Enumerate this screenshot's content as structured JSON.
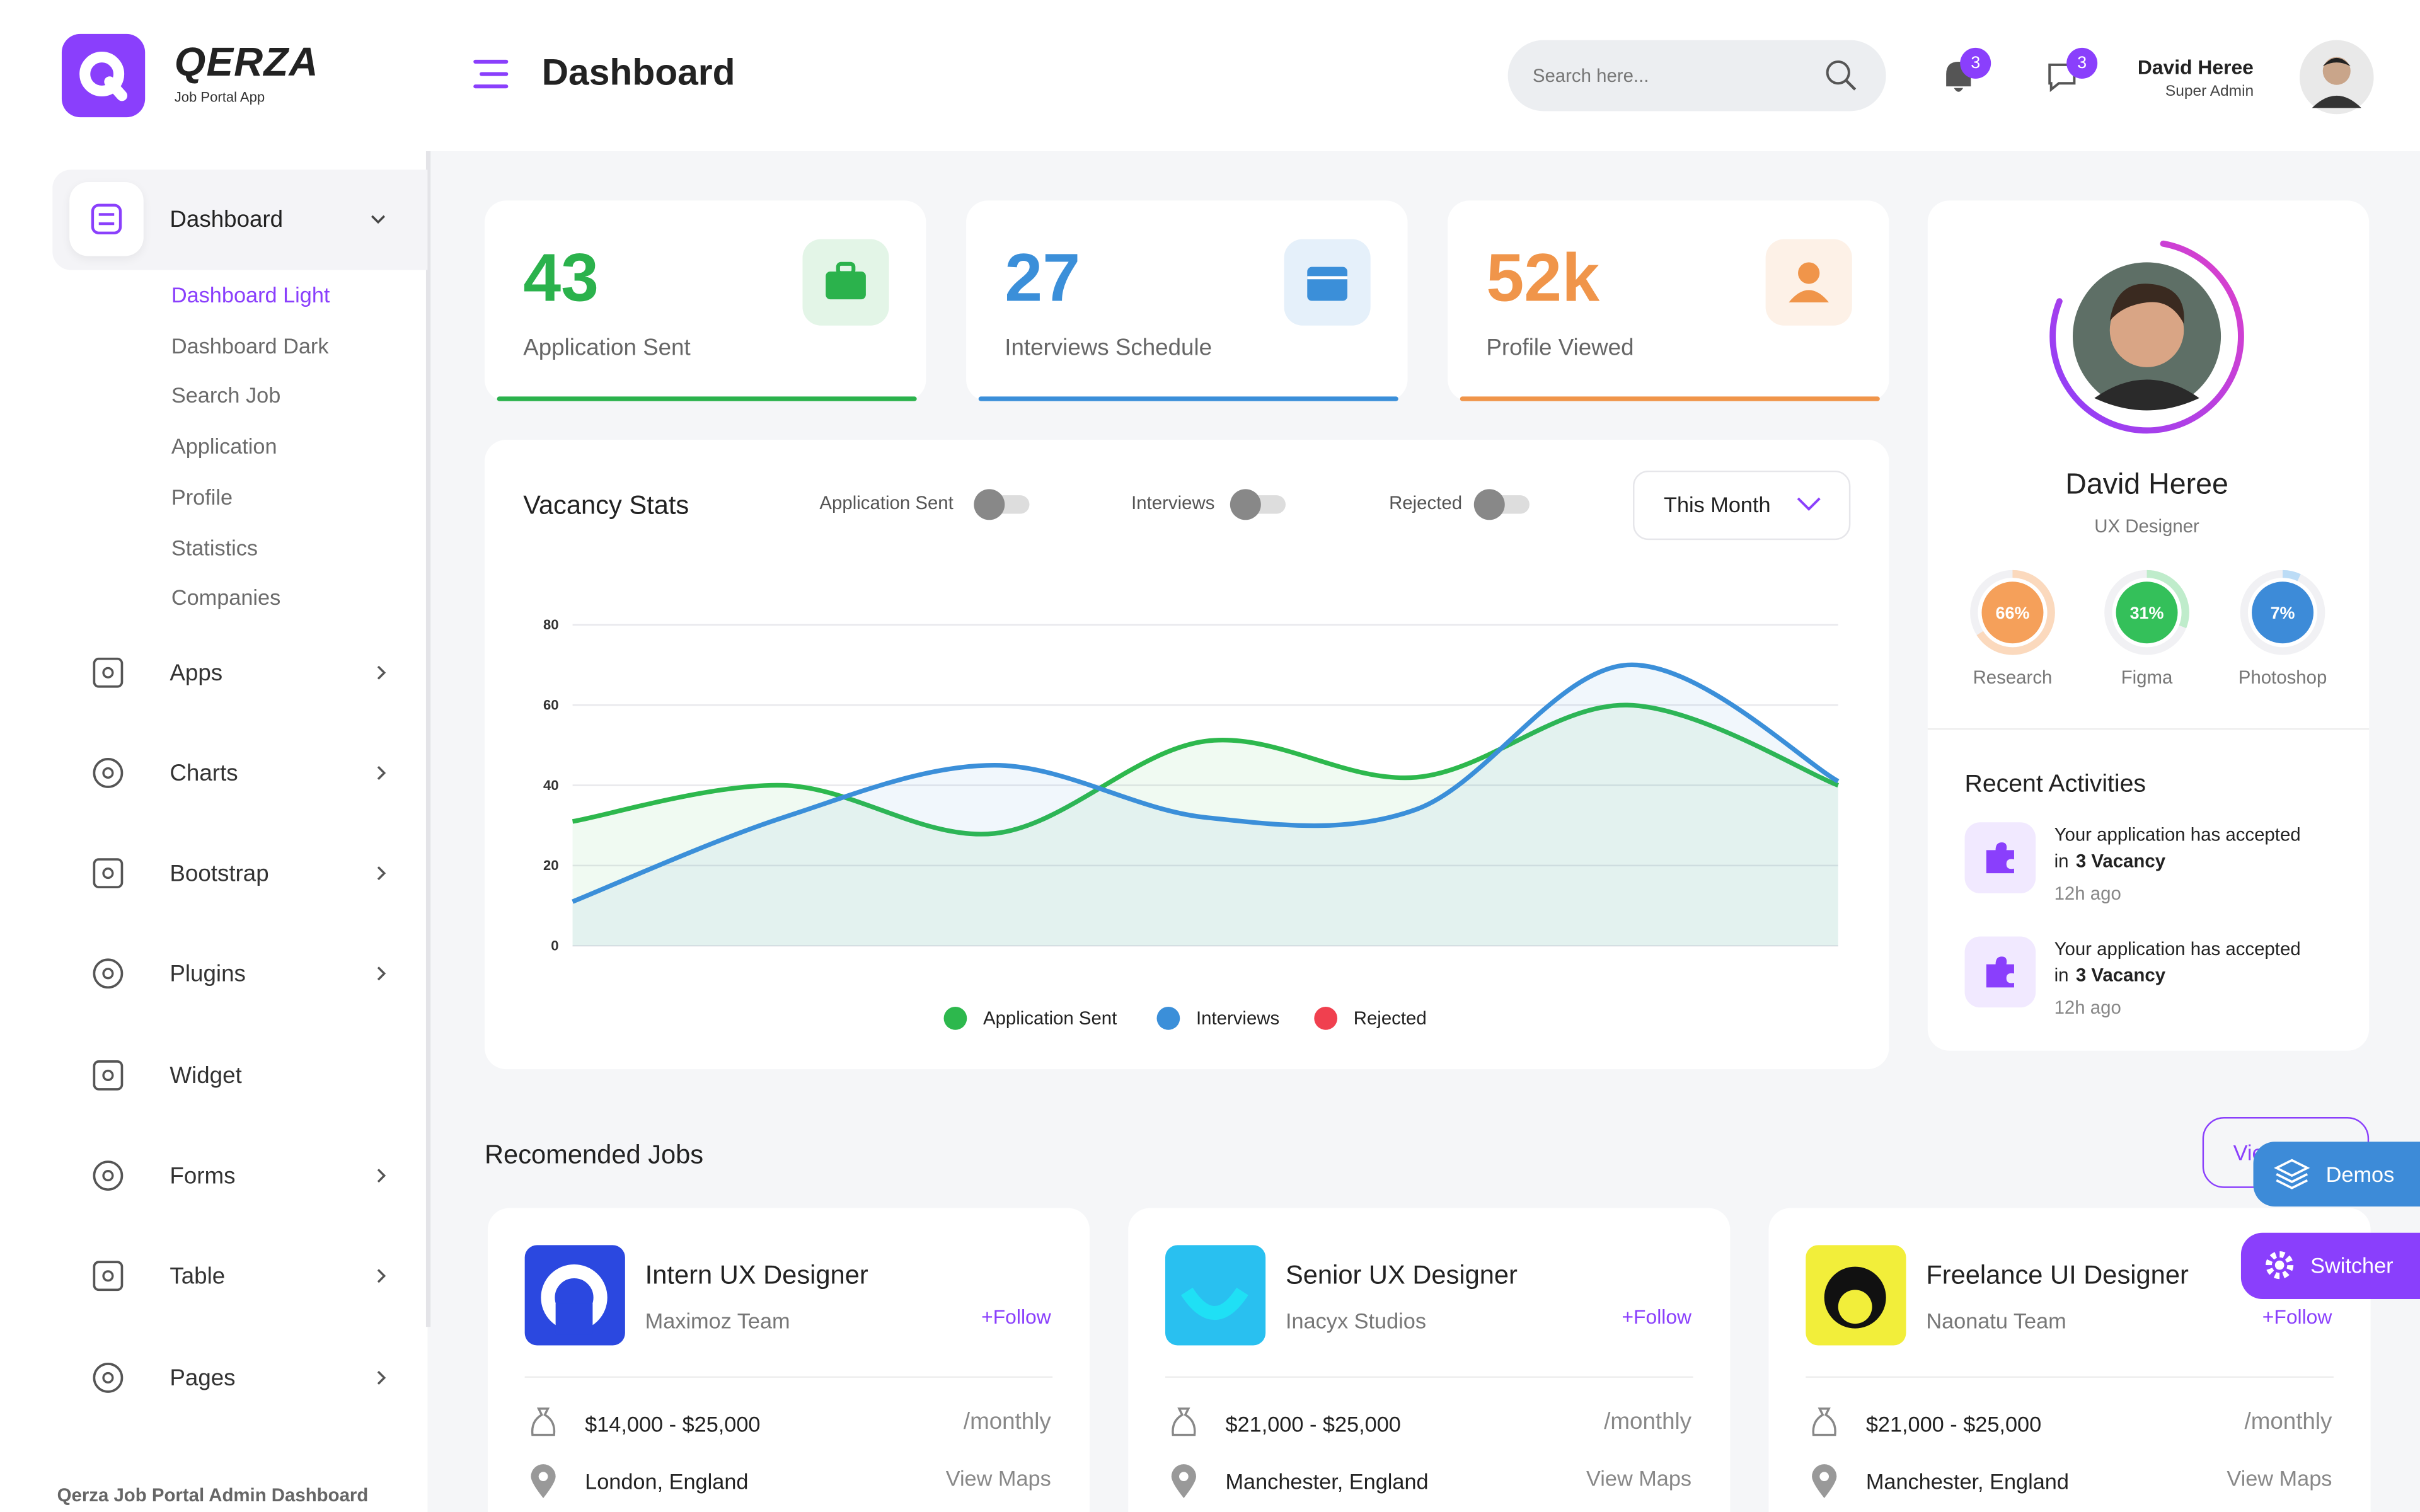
{
  "brand": {
    "name": "QERZA",
    "tagline": "Job Portal App"
  },
  "header": {
    "title": "Dashboard",
    "search_placeholder": "Search here...",
    "notifications": "3",
    "messages": "3",
    "user_name": "David Heree",
    "user_role": "Super Admin"
  },
  "sidebar": {
    "active": {
      "label": "Dashboard",
      "sub": [
        "Dashboard Light",
        "Dashboard Dark",
        "Search Job",
        "Application",
        "Profile",
        "Statistics",
        "Companies"
      ]
    },
    "items": [
      "Apps",
      "Charts",
      "Bootstrap",
      "Plugins",
      "Widget",
      "Forms",
      "Table",
      "Pages"
    ],
    "footer": "Qerza Job Portal Admin Dashboard"
  },
  "stats": [
    {
      "value": "43",
      "label": "Application Sent",
      "color": "#2bb24c"
    },
    {
      "value": "27",
      "label": "Interviews Schedule",
      "color": "#3b8fd9"
    },
    {
      "value": "52k",
      "label": "Profile Viewed",
      "color": "#f0954a"
    }
  ],
  "vacancy_chart": {
    "type": "line",
    "title": "Vacancy Stats",
    "period": "This Month",
    "categories": [
      null,
      null,
      null,
      null,
      null,
      null,
      null
    ],
    "ylim": [
      0,
      80
    ],
    "yticks": [
      0,
      20,
      40,
      60,
      80
    ],
    "grid": true,
    "series": [
      {
        "name": "Application Sent",
        "color": "#2db84d",
        "values": [
          31,
          40,
          28,
          51,
          42,
          60,
          40
        ]
      },
      {
        "name": "Interviews",
        "color": "#3b8fd9",
        "values": [
          11,
          32,
          45,
          32,
          34,
          70,
          41
        ]
      },
      {
        "name": "Rejected",
        "color": "#f0404f",
        "values": [
          null,
          null,
          null,
          null,
          null,
          null,
          null
        ]
      }
    ]
  },
  "profile": {
    "name": "David Heree",
    "role": "UX Designer",
    "skills": [
      {
        "name": "Research",
        "value": 66,
        "label": "66%",
        "color": "#f5a05a",
        "ring": "#fbd9bd"
      },
      {
        "name": "Figma",
        "value": 31,
        "label": "31%",
        "color": "#34c05a",
        "ring": "#bfeccb"
      },
      {
        "name": "Photoshop",
        "value": 7,
        "label": "7%",
        "color": "#3d8bd8",
        "ring": "#bcdcf6"
      }
    ],
    "recent_title": "Recent Activities",
    "activities": [
      {
        "text": "Your application has accepted",
        "text2": "in",
        "bold": "3 Vacancy",
        "time": "12h ago"
      },
      {
        "text": "Your application has accepted",
        "text2": "in",
        "bold": "3 Vacancy",
        "time": "12h ago"
      }
    ]
  },
  "jobs": {
    "title": "Recomended Jobs",
    "view_button": "View More",
    "items": [
      {
        "title": "Intern UX Designer",
        "company": "Maximoz Team",
        "follow": "+Follow",
        "salary": "$14,000 - $25,000",
        "period": "/monthly",
        "location": "London, England",
        "map": "View Maps"
      },
      {
        "title": "Senior UX Designer",
        "company": "Inacyx Studios",
        "follow": "+Follow",
        "salary": "$21,000 - $25,000",
        "period": "/monthly",
        "location": "Manchester, England",
        "map": "View Maps"
      },
      {
        "title": "Freelance UI Designer",
        "company": "Naonatu Team",
        "follow": "+Follow",
        "salary": "$21,000 - $25,000",
        "period": "/monthly",
        "location": "Manchester, England",
        "map": "View Maps"
      }
    ]
  },
  "floating": {
    "demos": "Demos",
    "switcher": "Switcher"
  }
}
